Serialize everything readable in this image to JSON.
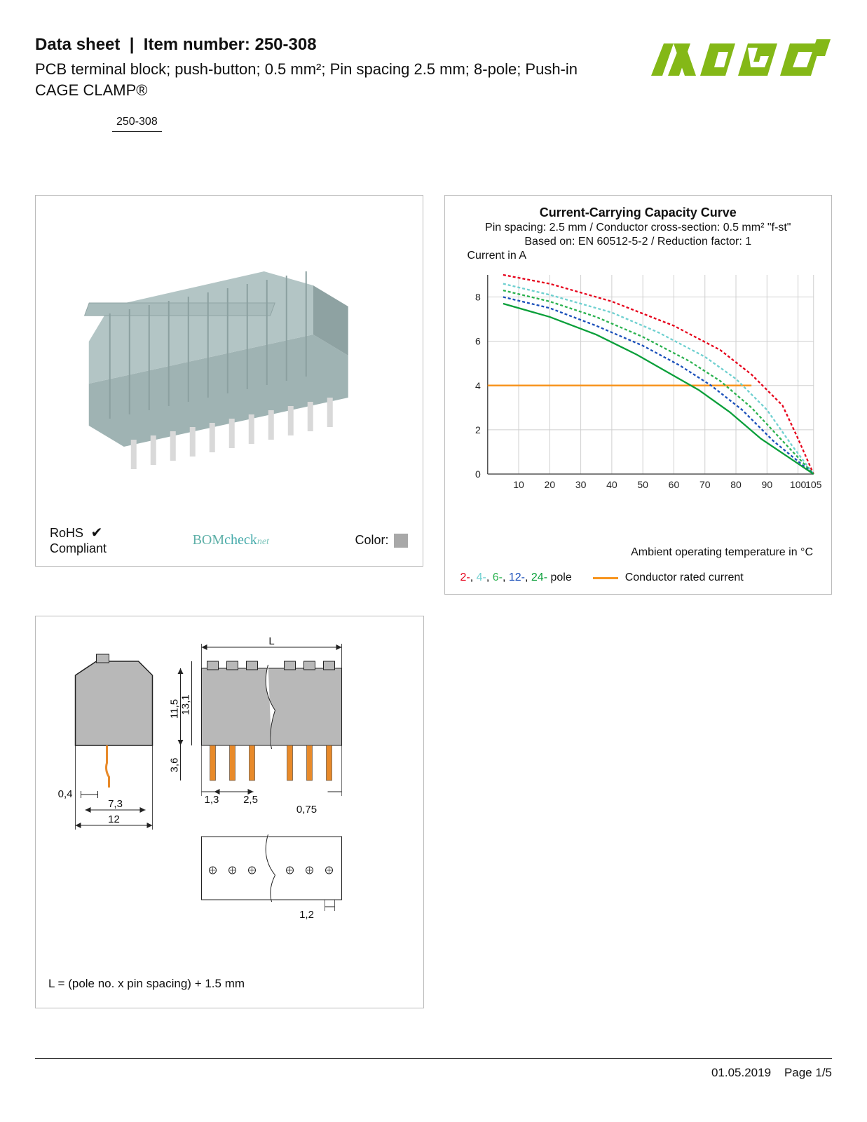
{
  "header": {
    "title_prefix": "Data sheet",
    "title_sep": "|",
    "title_item_label": "Item number:",
    "item_number": "250-308",
    "subtitle": "PCB terminal block; push-button; 0.5 mm²; Pin spacing 2.5 mm; 8-pole; Push-in CAGE CLAMP®",
    "item_badge": "250-308",
    "logo_text": "WAGO",
    "logo_color": "#84b817"
  },
  "product_panel": {
    "block_color": "#b3c3c3",
    "pin_color": "#d9d9d9",
    "rohs_line1": "RoHS",
    "rohs_line2": "Compliant",
    "bomcheck_bom": "BOM",
    "bomcheck_check": "check",
    "bomcheck_net": "net",
    "color_label": "Color:",
    "color_swatch": "#a8a8a8"
  },
  "chart": {
    "title": "Current-Carrying Capacity Curve",
    "sub1": "Pin spacing: 2.5 mm / Conductor cross-section: 0.5 mm² \"f-st\"",
    "sub2": "Based on: EN 60512-5-2 / Reduction factor: 1",
    "ylabel": "Current in A",
    "xlabel": "Ambient operating temperature in °C",
    "xlim": [
      0,
      105
    ],
    "ylim": [
      0,
      9
    ],
    "xticks": [
      10,
      20,
      30,
      40,
      50,
      60,
      70,
      80,
      90,
      100,
      105
    ],
    "yticks": [
      0,
      2,
      4,
      6,
      8
    ],
    "grid_color": "#cfcfcf",
    "bg_color": "#ffffff",
    "rated_current_y": 4,
    "rated_current_color": "#f7941e",
    "series": {
      "p2": {
        "color": "#e6001a",
        "dash": "4 3",
        "points": [
          [
            5,
            9
          ],
          [
            20,
            8.6
          ],
          [
            40,
            7.8
          ],
          [
            60,
            6.7
          ],
          [
            75,
            5.6
          ],
          [
            85,
            4.5
          ],
          [
            95,
            3.1
          ],
          [
            100,
            1.6
          ],
          [
            105,
            0
          ]
        ]
      },
      "p4": {
        "color": "#6fd0d0",
        "dash": "4 3",
        "points": [
          [
            5,
            8.6
          ],
          [
            20,
            8.1
          ],
          [
            40,
            7.3
          ],
          [
            55,
            6.4
          ],
          [
            70,
            5.3
          ],
          [
            80,
            4.3
          ],
          [
            90,
            2.9
          ],
          [
            98,
            1.3
          ],
          [
            105,
            0
          ]
        ]
      },
      "p6": {
        "color": "#2bb24f",
        "dash": "4 3",
        "points": [
          [
            5,
            8.3
          ],
          [
            20,
            7.8
          ],
          [
            35,
            7.1
          ],
          [
            50,
            6.2
          ],
          [
            65,
            5.1
          ],
          [
            75,
            4.2
          ],
          [
            85,
            3.0
          ],
          [
            95,
            1.5
          ],
          [
            105,
            0
          ]
        ]
      },
      "p12": {
        "color": "#1a4fba",
        "dash": "4 3",
        "points": [
          [
            5,
            8.0
          ],
          [
            20,
            7.5
          ],
          [
            35,
            6.7
          ],
          [
            50,
            5.8
          ],
          [
            62,
            4.9
          ],
          [
            72,
            4.0
          ],
          [
            82,
            2.9
          ],
          [
            92,
            1.5
          ],
          [
            105,
            0
          ]
        ]
      },
      "p24": {
        "color": "#0a9f3a",
        "dash": "none",
        "points": [
          [
            5,
            7.7
          ],
          [
            20,
            7.1
          ],
          [
            35,
            6.3
          ],
          [
            48,
            5.4
          ],
          [
            58,
            4.6
          ],
          [
            68,
            3.8
          ],
          [
            78,
            2.8
          ],
          [
            88,
            1.6
          ],
          [
            105,
            0
          ]
        ]
      }
    },
    "legend_poles": [
      "2-",
      "4-",
      "6-",
      "12-",
      "24-"
    ],
    "legend_poles_suffix": " pole",
    "legend_cond": "Conductor rated current"
  },
  "dims": {
    "body_color": "#b8b8b8",
    "pin_color": "#e88a2a",
    "line_color": "#222222",
    "labels": {
      "L": "L",
      "h115": "11,5",
      "h131": "13,1",
      "h36": "3,6",
      "w04": "0,4",
      "w73": "7,3",
      "w12": "12",
      "p13": "1,3",
      "p25": "2,5",
      "p075": "0,75",
      "hole12": "1,2"
    },
    "note": "L = (pole no. x pin spacing) + 1.5 mm"
  },
  "footer": {
    "date": "01.05.2019",
    "page": "Page 1/5"
  }
}
